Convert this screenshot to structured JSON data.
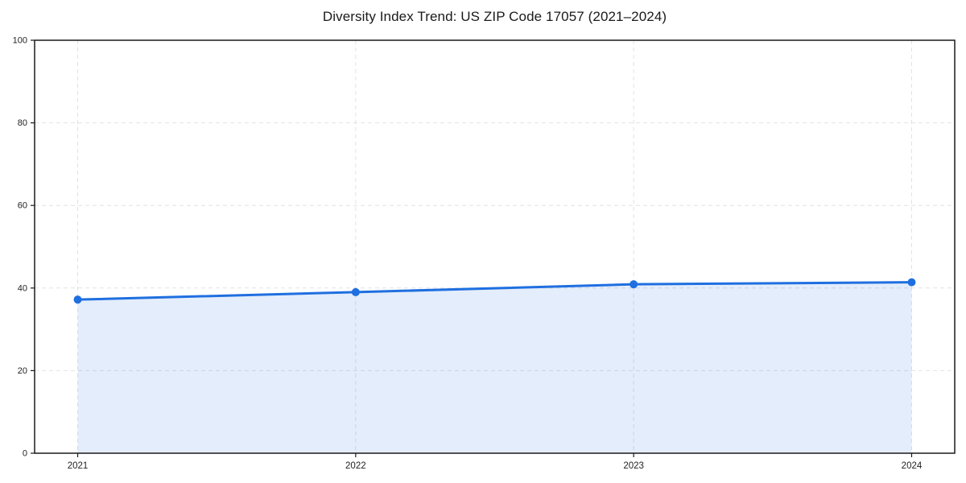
{
  "page": {
    "background": "#ffffff"
  },
  "chart_data": {
    "type": "line",
    "title": "Diversity Index Trend: US ZIP Code 17057 (2021–2024)",
    "x": [
      2021,
      2022,
      2023,
      2024
    ],
    "series": [
      {
        "name": "Diversity Index",
        "values": [
          37.2,
          39.0,
          40.9,
          41.4
        ]
      }
    ],
    "xlabel": "",
    "ylabel": "",
    "xlim": [
      2020.845,
      2024.155
    ],
    "ylim": [
      0,
      100
    ],
    "yticks": [
      0,
      20,
      40,
      60,
      80,
      100
    ],
    "xticks": [
      2021,
      2022,
      2023,
      2024
    ],
    "grid": "dashed",
    "legend": "none",
    "area_fill": true,
    "marker": "circle",
    "colors": {
      "line": "#1f6fe0",
      "marker": "#1f6fe0",
      "area_fill": "rgba(31,111,224,0.12)",
      "grid": "#e2e2e2",
      "spine": "#1a1a1a",
      "title": "#1a1a1a",
      "tick_label": "#222222"
    }
  }
}
